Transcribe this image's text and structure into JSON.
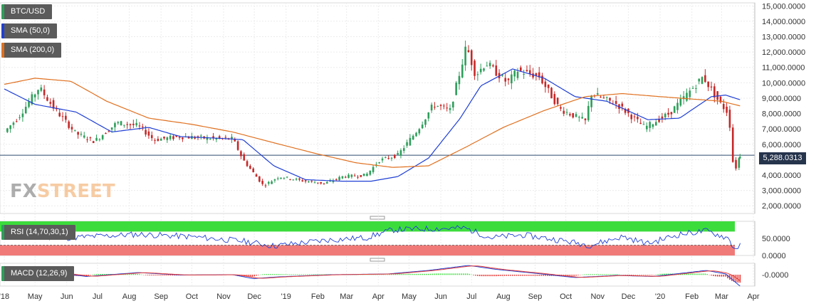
{
  "legends": {
    "symbol": "BTC/USD",
    "sma50": "SMA (50,0)",
    "sma200": "SMA (200,0)",
    "rsi": "RSI (14,70,30,1)",
    "macd": "MACD (12,26,9)"
  },
  "logo": {
    "fx": "FX",
    "street": "STREET"
  },
  "current_price_label": "5,288.0313",
  "colors": {
    "price_line": "#2f4a6e",
    "sma50": "#1f3fd4",
    "sma200": "#e0701f",
    "candle_up": "#2e9e5a",
    "candle_down": "#c62828",
    "rsi_overbought_band": "#3ddc3d",
    "rsi_oversold_band": "#f07a78",
    "macd_signal": "#e53935"
  },
  "chart_data": [
    {
      "type": "line",
      "title": "BTC/USD",
      "y_ticks": [
        "15,000.0000",
        "14,000.0000",
        "13,000.0000",
        "12,000.0000",
        "11,000.0000",
        "10,000.0000",
        "9,000.0000",
        "8,000.0000",
        "7,000.0000",
        "6,000.0000",
        "5,000.0000",
        "4,000.0000",
        "3,000.0000",
        "2,000.0000"
      ],
      "ylim": [
        1500,
        15200
      ],
      "x_ticks": [
        "'18",
        "May",
        "Jun",
        "Jul",
        "Aug",
        "Sep",
        "Oct",
        "Nov",
        "Dec",
        "'19",
        "Feb",
        "Mar",
        "Apr",
        "May",
        "Jun",
        "Jul",
        "Aug",
        "Sep",
        "Oct",
        "Nov",
        "Dec",
        "'20",
        "Feb",
        "Mar",
        "Apr"
      ],
      "x_months": [
        "2018-04",
        "2018-05",
        "2018-06",
        "2018-07",
        "2018-08",
        "2018-09",
        "2018-10",
        "2018-11",
        "2018-12",
        "2019-01",
        "2019-02",
        "2019-03",
        "2019-04",
        "2019-05",
        "2019-06",
        "2019-07",
        "2019-08",
        "2019-09",
        "2019-10",
        "2019-11",
        "2019-12",
        "2020-01",
        "2020-02",
        "2020-03",
        "2020-04"
      ],
      "current_price": 5288.0313,
      "series": [
        {
          "name": "BTC/USD",
          "x": [
            "2018-04-01",
            "2018-04-15",
            "2018-05-05",
            "2018-05-20",
            "2018-06-10",
            "2018-06-28",
            "2018-07-20",
            "2018-08-10",
            "2018-08-25",
            "2018-09-20",
            "2018-10-15",
            "2018-11-10",
            "2018-11-20",
            "2018-12-10",
            "2018-12-25",
            "2019-01-20",
            "2019-02-08",
            "2019-02-25",
            "2019-03-20",
            "2019-04-02",
            "2019-04-20",
            "2019-05-10",
            "2019-05-25",
            "2019-06-10",
            "2019-06-26",
            "2019-07-05",
            "2019-07-15",
            "2019-08-05",
            "2019-08-15",
            "2019-09-05",
            "2019-09-25",
            "2019-10-20",
            "2019-10-26",
            "2019-11-20",
            "2019-12-17",
            "2020-01-10",
            "2020-02-12",
            "2020-02-28",
            "2020-03-08",
            "2020-03-13",
            "2020-03-19"
          ],
          "values": [
            6800,
            7800,
            9700,
            8300,
            6700,
            6200,
            7400,
            7200,
            6300,
            6500,
            6400,
            6350,
            5000,
            3300,
            3900,
            3600,
            3450,
            3900,
            4000,
            4950,
            5300,
            7000,
            8600,
            8200,
            12400,
            10500,
            11300,
            10000,
            10800,
            10400,
            8300,
            7500,
            9300,
            8600,
            7100,
            8000,
            10400,
            8700,
            8000,
            4100,
            5288
          ]
        },
        {
          "name": "SMA (50,0)",
          "x": [
            "2018-04-01",
            "2018-05-01",
            "2018-06-10",
            "2018-07-15",
            "2018-08-20",
            "2018-09-20",
            "2018-10-25",
            "2018-11-20",
            "2018-12-20",
            "2019-01-20",
            "2019-02-25",
            "2019-03-25",
            "2019-04-20",
            "2019-05-20",
            "2019-06-20",
            "2019-07-10",
            "2019-08-10",
            "2019-09-10",
            "2019-10-10",
            "2019-11-10",
            "2019-12-20",
            "2020-01-20",
            "2020-02-20",
            "2020-03-05",
            "2020-03-19"
          ],
          "values": [
            9600,
            8600,
            8100,
            6800,
            7100,
            6500,
            6400,
            6300,
            4600,
            3700,
            3600,
            3600,
            3900,
            5100,
            7700,
            9800,
            10900,
            10300,
            9100,
            8800,
            7600,
            7700,
            9100,
            9200,
            8900
          ]
        },
        {
          "name": "SMA (200,0)",
          "x": [
            "2018-04-01",
            "2018-05-01",
            "2018-06-05",
            "2018-07-10",
            "2018-08-20",
            "2018-10-01",
            "2018-11-10",
            "2018-12-20",
            "2019-01-30",
            "2019-03-10",
            "2019-04-15",
            "2019-05-20",
            "2019-06-25",
            "2019-08-01",
            "2019-09-10",
            "2019-10-20",
            "2019-11-25",
            "2020-01-01",
            "2020-02-10",
            "2020-03-01",
            "2020-03-19"
          ],
          "values": [
            9900,
            10300,
            10100,
            8800,
            7700,
            7300,
            6800,
            6100,
            5400,
            4800,
            4500,
            4600,
            5800,
            7100,
            8200,
            9100,
            9300,
            9100,
            8900,
            8800,
            8500
          ]
        }
      ]
    },
    {
      "type": "line",
      "title": "RSI (14,70,30,1)",
      "y_ticks": [
        "50.0000",
        "0.0000"
      ],
      "ylim": [
        0,
        100
      ],
      "bands": {
        "overbought": [
          70,
          100
        ],
        "oversold": [
          0,
          30
        ]
      },
      "series": [
        {
          "name": "RSI (14,70,30,1)",
          "x": [
            "2018-04-01",
            "2018-06-01",
            "2018-08-10",
            "2018-10-01",
            "2018-11-20",
            "2018-12-20",
            "2019-02-10",
            "2019-03-20",
            "2019-04-15",
            "2019-05-15",
            "2019-06-25",
            "2019-07-20",
            "2019-08-20",
            "2019-09-25",
            "2019-10-25",
            "2019-11-25",
            "2019-12-20",
            "2020-01-20",
            "2020-02-15",
            "2020-03-08",
            "2020-03-13",
            "2020-03-19"
          ],
          "values": [
            60,
            52,
            62,
            55,
            42,
            28,
            45,
            52,
            75,
            78,
            80,
            52,
            60,
            45,
            30,
            55,
            35,
            62,
            72,
            50,
            20,
            28
          ]
        }
      ]
    },
    {
      "type": "line",
      "title": "MACD (12,26,9)",
      "y_ticks": [
        "-0.0000"
      ],
      "series": [
        {
          "name": "MACD (12,26,9)",
          "x": [
            "2018-04-01",
            "2018-05-15",
            "2018-06-20",
            "2018-08-10",
            "2018-09-20",
            "2018-11-10",
            "2018-11-30",
            "2018-12-25",
            "2019-02-15",
            "2019-04-10",
            "2019-05-20",
            "2019-06-28",
            "2019-07-25",
            "2019-09-01",
            "2019-10-10",
            "2019-11-20",
            "2019-12-25",
            "2020-01-25",
            "2020-02-15",
            "2020-03-05",
            "2020-03-19"
          ],
          "values": [
            1,
            0.8,
            -0.5,
            0.6,
            -0.1,
            0,
            -1.1,
            -0.6,
            0,
            0.2,
            1.2,
            2.6,
            1.5,
            0.4,
            -0.8,
            -0.2,
            -0.5,
            0.5,
            1.2,
            0.2,
            -3.2
          ]
        }
      ]
    }
  ]
}
